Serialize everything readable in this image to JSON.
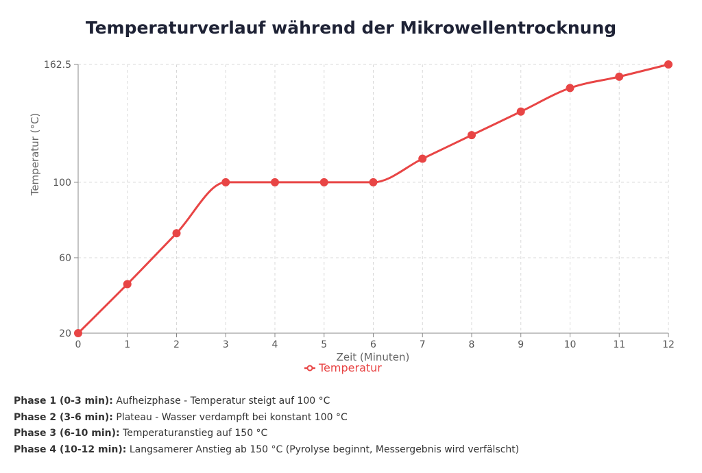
{
  "chart_data": {
    "type": "line",
    "title": "Temperaturverlauf während der Mikrowellentrocknung",
    "xlabel": "Zeit (Minuten)",
    "ylabel": "Temperatur (°C)",
    "x": [
      0,
      1,
      2,
      3,
      4,
      5,
      6,
      7,
      8,
      9,
      10,
      11,
      12
    ],
    "xlim": [
      0,
      12
    ],
    "ylim": [
      20,
      162.5
    ],
    "yticks": [
      "20",
      "60",
      "100",
      "162.5"
    ],
    "xticks": [
      "0",
      "1",
      "2",
      "3",
      "4",
      "5",
      "6",
      "7",
      "8",
      "9",
      "10",
      "11",
      "12"
    ],
    "series": [
      {
        "name": "Temperatur",
        "color": "#e84545",
        "values": [
          20,
          46,
          73,
          100,
          100,
          100,
          100,
          112.5,
          125,
          137.5,
          150,
          156,
          162.5
        ]
      }
    ],
    "grid": true,
    "legend_position": "bottom-center"
  },
  "notes": [
    {
      "label": "Phase 1 (0-3 min):",
      "text": "Aufheizphase - Temperatur steigt auf 100 °C"
    },
    {
      "label": "Phase 2 (3-6 min):",
      "text": "Plateau - Wasser verdampft bei konstant 100 °C"
    },
    {
      "label": "Phase 3 (6-10 min):",
      "text": "Temperaturanstieg auf 150 °C"
    },
    {
      "label": "Phase 4 (10-12 min):",
      "text": "Langsamerer Anstieg ab 150 °C (Pyrolyse beginnt, Messergebnis wird verfälscht)"
    }
  ]
}
